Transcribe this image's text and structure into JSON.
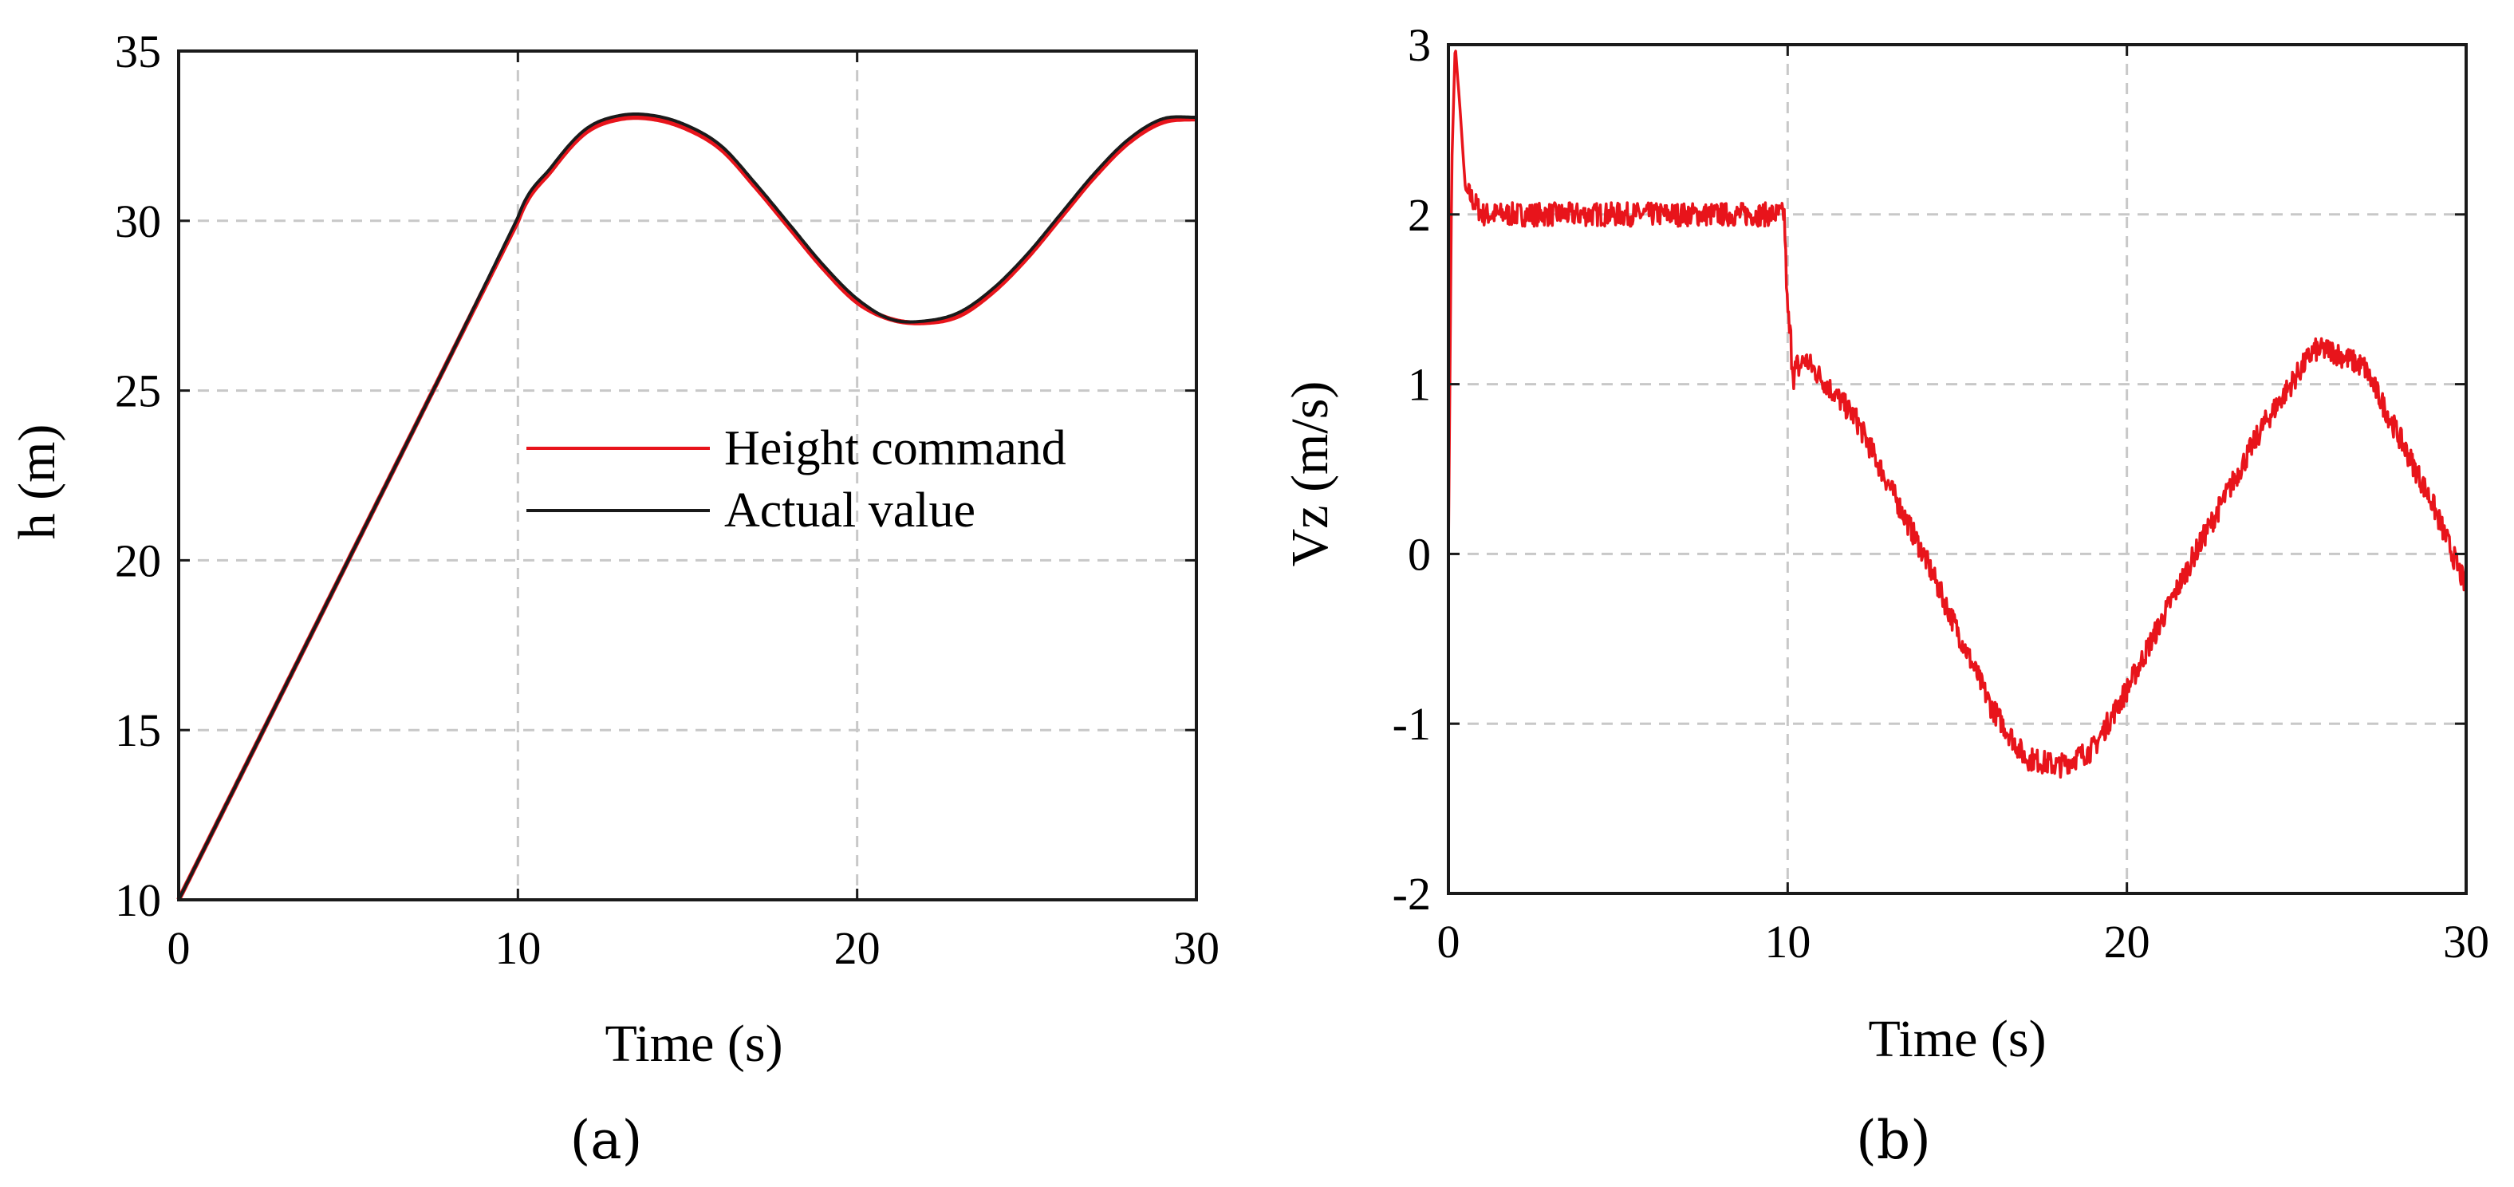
{
  "chart_data": [
    {
      "type": "line",
      "panel_label": "(a)",
      "xlabel": "Time (s)",
      "ylabel": "h (m)",
      "xlim": [
        0,
        30
      ],
      "ylim": [
        10,
        35
      ],
      "xticks": [
        "0",
        "10",
        "20",
        "30"
      ],
      "yticks": [
        "10",
        "15",
        "20",
        "25",
        "30",
        "35"
      ],
      "grid": true,
      "legend_position": "center",
      "series": [
        {
          "name": "Height command",
          "color": "#e8141b",
          "x": [
            0,
            2,
            4,
            6,
            8,
            10,
            11,
            12,
            13,
            14,
            15,
            16,
            17,
            18,
            19,
            20,
            21,
            22,
            23,
            24,
            25,
            26,
            27,
            28,
            29,
            30
          ],
          "y": [
            10,
            14,
            18,
            22,
            26,
            30,
            31.5,
            32.6,
            33.0,
            33.0,
            32.7,
            32.1,
            31.0,
            29.8,
            28.6,
            27.6,
            27.1,
            27.0,
            27.2,
            27.9,
            28.9,
            30.1,
            31.3,
            32.3,
            32.9,
            33.0
          ]
        },
        {
          "name": "Actual value",
          "color": "#1a1a1a",
          "x": [
            0,
            2,
            4,
            6,
            8,
            10,
            11,
            12,
            13,
            14,
            15,
            16,
            17,
            18,
            19,
            20,
            21,
            22,
            23,
            24,
            25,
            26,
            27,
            28,
            29,
            30
          ],
          "y": [
            10,
            14,
            18,
            22,
            26,
            30.1,
            31.6,
            32.7,
            33.1,
            33.1,
            32.8,
            32.2,
            31.1,
            29.9,
            28.7,
            27.7,
            27.1,
            27.05,
            27.3,
            28.0,
            29.0,
            30.2,
            31.4,
            32.4,
            33.0,
            33.05
          ]
        }
      ]
    },
    {
      "type": "line",
      "panel_label": "(b)",
      "xlabel": "Time (s)",
      "ylabel": "Vz (m/s)",
      "xlim": [
        0,
        30
      ],
      "ylim": [
        -2,
        3
      ],
      "xticks": [
        "0",
        "10",
        "20",
        "30"
      ],
      "yticks": [
        "-2",
        "-1",
        "0",
        "1",
        "2",
        "3"
      ],
      "grid": true,
      "series": [
        {
          "name": "Vz",
          "color": "#e8141b",
          "x": [
            0,
            0.1,
            0.2,
            0.35,
            0.5,
            1,
            2,
            4,
            6,
            8,
            9.9,
            10.0,
            10.2,
            10.5,
            12,
            14,
            16,
            17,
            18,
            19,
            20,
            22,
            24,
            25.5,
            26,
            27,
            28,
            29,
            30
          ],
          "y": [
            0,
            2.3,
            3.0,
            2.6,
            2.15,
            2.0,
            2.0,
            2.0,
            2.0,
            2.0,
            2.0,
            1.4,
            1.05,
            1.15,
            0.8,
            0.0,
            -0.9,
            -1.2,
            -1.25,
            -1.15,
            -0.8,
            0.0,
            0.75,
            1.2,
            1.2,
            1.1,
            0.7,
            0.3,
            -0.2
          ]
        }
      ]
    }
  ]
}
